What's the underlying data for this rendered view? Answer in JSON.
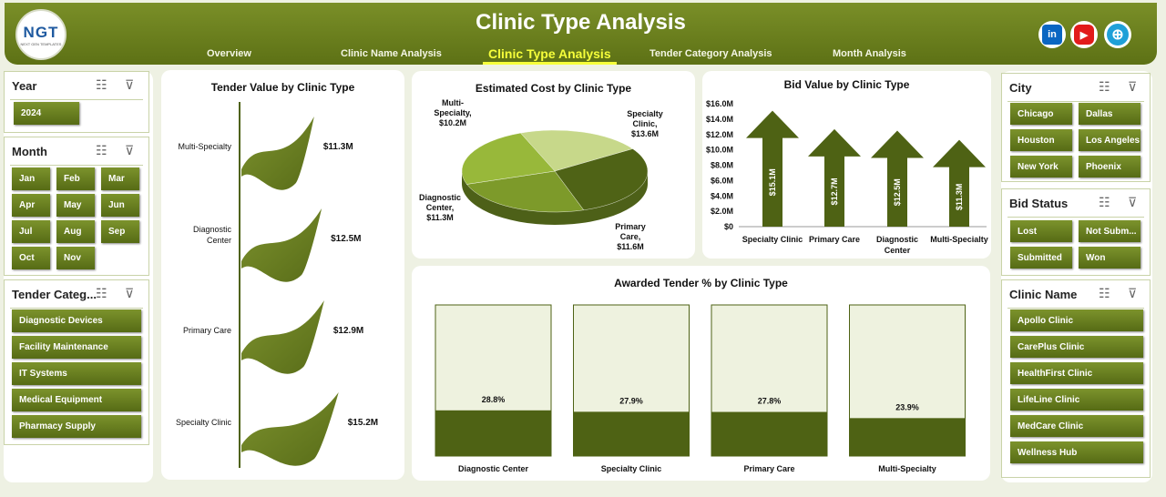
{
  "header": {
    "title": "Clinic Type Analysis",
    "logo_text": "NGT",
    "logo_sub": "NEXT GEN TEMPLATES",
    "nav": [
      {
        "label": "Overview"
      },
      {
        "label": "Clinic Name Analysis"
      },
      {
        "label": "Clinic Type Analysis"
      },
      {
        "label": "Tender Category  Analysis"
      },
      {
        "label": "Month Analysis"
      }
    ],
    "social": [
      {
        "icon": "linkedin-icon",
        "text": "in",
        "color": "#0a66c2"
      },
      {
        "icon": "youtube-icon",
        "text": "▶",
        "color": "#e21b1b"
      },
      {
        "icon": "globe-icon",
        "text": "⊕",
        "color": "#1fa0d8"
      }
    ]
  },
  "slicers": {
    "year": {
      "title": "Year",
      "items": [
        "2024"
      ]
    },
    "month": {
      "title": "Month",
      "items": [
        "Jan",
        "Feb",
        "Mar",
        "Apr",
        "May",
        "Jun",
        "Jul",
        "Aug",
        "Sep",
        "Oct",
        "Nov"
      ]
    },
    "tender": {
      "title": "Tender Categ...",
      "items": [
        "Diagnostic Devices",
        "Facility Maintenance",
        "IT Systems",
        "Medical Equipment",
        "Pharmacy Supply"
      ]
    },
    "city": {
      "title": "City",
      "items": [
        "Chicago",
        "Dallas",
        "Houston",
        "Los Angeles",
        "New York",
        "Phoenix"
      ]
    },
    "bid": {
      "title": "Bid Status",
      "items": [
        "Lost",
        "Not Subm...",
        "Submitted",
        "Won"
      ]
    },
    "clinic": {
      "title": "Clinic Name",
      "items": [
        "Apollo Clinic",
        "CarePlus Clinic",
        "HealthFirst Clinic",
        "LifeLine Clinic",
        "MedCare Clinic",
        "Wellness Hub"
      ]
    }
  },
  "chart_data": [
    {
      "type": "bar",
      "title": "Tender Value by Clinic Type",
      "categories": [
        "Multi-Specialty",
        "Diagnostic Center",
        "Primary Care",
        "Specialty Clinic"
      ],
      "values": [
        11.3,
        12.5,
        12.9,
        15.2
      ],
      "data_labels": [
        "$11.3M",
        "$12.5M",
        "$12.9M",
        "$15.2M"
      ]
    },
    {
      "type": "pie",
      "title": "Estimated Cost by Clinic Type",
      "categories": [
        "Multi-Specialty",
        "Specialty Clinic",
        "Primary Care",
        "Diagnostic Center"
      ],
      "values": [
        10.2,
        13.6,
        11.6,
        11.3
      ],
      "labels": [
        "Multi-Specialty, $10.2M",
        "Specialty Clinic, $13.6M",
        "Primary Care, $11.6M",
        "Diagnostic Center, $11.3M"
      ],
      "colors": [
        "#c7d88a",
        "#4f6316",
        "#7d9a2a",
        "#98b83a"
      ]
    },
    {
      "type": "bar",
      "title": "Bid Value by Clinic Type",
      "categories": [
        "Specialty Clinic",
        "Primary Care",
        "Diagnostic Center",
        "Multi-Specialty"
      ],
      "values": [
        15.1,
        12.7,
        12.5,
        11.3
      ],
      "data_labels": [
        "$15.1M",
        "$12.7M",
        "$12.5M",
        "$11.3M"
      ],
      "ylim": [
        0,
        16
      ],
      "ticks": [
        "$0",
        "$2.0M",
        "$4.0M",
        "$6.0M",
        "$8.0M",
        "$10.0M",
        "$12.0M",
        "$14.0M",
        "$16.0M"
      ]
    },
    {
      "type": "bar",
      "title": "Awarded Tender % by Clinic Type",
      "categories": [
        "Diagnostic Center",
        "Specialty Clinic",
        "Primary Care",
        "Multi-Specialty"
      ],
      "values": [
        28.8,
        27.9,
        27.8,
        23.9
      ],
      "data_labels": [
        "28.8%",
        "27.9%",
        "27.8%",
        "23.9%"
      ],
      "ylim": [
        0,
        100
      ]
    }
  ]
}
